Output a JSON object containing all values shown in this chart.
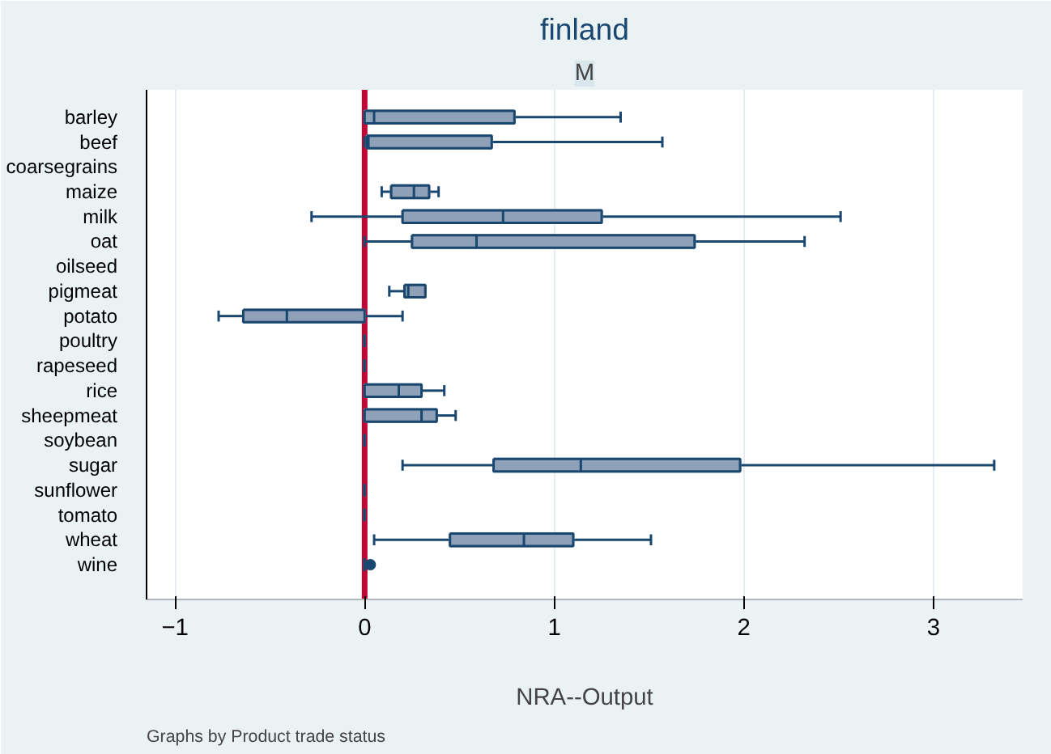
{
  "chart_data": {
    "type": "box",
    "orientation": "horizontal",
    "title": "finland",
    "subtitle": "M",
    "xlabel": "NRA--Output",
    "annotations": [
      "Graphs by Product trade status"
    ],
    "categories": [
      "barley",
      "beef",
      "coarsegrains",
      "maize",
      "milk",
      "oat",
      "oilseed",
      "pigmeat",
      "potato",
      "poultry",
      "rapeseed",
      "rice",
      "sheepmeat",
      "soybean",
      "sugar",
      "sunflower",
      "tomato",
      "wheat",
      "wine"
    ],
    "color": "#8ea1b8",
    "boxes": [
      {
        "low": 0,
        "q1": 0,
        "median": 0.05,
        "q3": 0.79,
        "high": 1.35
      },
      {
        "low": 0,
        "q1": 0.01,
        "median": 0.02,
        "q3": 0.67,
        "high": 1.57
      },
      null,
      {
        "low": 0.09,
        "q1": 0.14,
        "median": 0.26,
        "q3": 0.34,
        "high": 0.39
      },
      {
        "low": -0.28,
        "q1": 0.2,
        "median": 0.73,
        "q3": 1.25,
        "high": 2.51
      },
      {
        "low": 0,
        "q1": 0.25,
        "median": 0.59,
        "q3": 1.74,
        "high": 2.32
      },
      null,
      {
        "low": 0.13,
        "q1": 0.21,
        "median": 0.23,
        "q3": 0.32,
        "high": 0.32
      },
      {
        "low": -0.77,
        "q1": -0.64,
        "median": -0.41,
        "q3": 0,
        "high": 0.2
      },
      {
        "low": 0,
        "q1": 0,
        "median": 0,
        "q3": 0,
        "high": 0
      },
      {
        "low": 0,
        "q1": 0,
        "median": 0,
        "q3": 0,
        "high": 0
      },
      {
        "low": 0,
        "q1": 0,
        "median": 0.18,
        "q3": 0.3,
        "high": 0.42
      },
      {
        "low": 0,
        "q1": 0,
        "median": 0.3,
        "q3": 0.38,
        "high": 0.48
      },
      {
        "low": 0,
        "q1": 0,
        "median": 0,
        "q3": 0,
        "high": 0
      },
      {
        "low": 0.2,
        "q1": 0.68,
        "median": 1.14,
        "q3": 1.98,
        "high": 3.32
      },
      {
        "low": 0,
        "q1": 0,
        "median": 0,
        "q3": 0,
        "high": 0
      },
      {
        "low": 0,
        "q1": 0,
        "median": 0,
        "q3": 0,
        "high": 0
      },
      {
        "low": 0.05,
        "q1": 0.45,
        "median": 0.84,
        "q3": 1.1,
        "high": 1.51
      },
      {
        "low": 0,
        "q1": 0,
        "median": 0,
        "q3": 0,
        "high": 0,
        "outliers": [
          0.03
        ]
      }
    ],
    "xlim": [
      -1.15,
      3.47
    ],
    "xticks": [
      -1,
      0,
      1,
      2,
      3
    ],
    "grid": "x",
    "ref_lines": [
      {
        "axis": "x",
        "value": 0,
        "color": "#c10534"
      }
    ]
  }
}
